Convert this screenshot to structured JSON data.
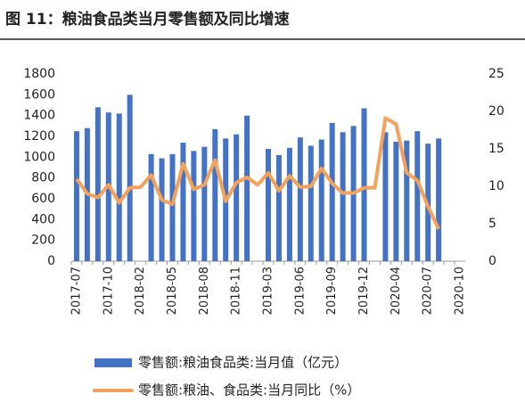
{
  "chart_data": {
    "type": "bar-line",
    "title": "图 11：粮油食品类当月零售额及同比增速",
    "categories": [
      "2017-07",
      null,
      null,
      "2017-10",
      null,
      null,
      "2018-02",
      null,
      null,
      "2018-05",
      null,
      null,
      "2018-08",
      null,
      null,
      "2018-11",
      null,
      null,
      "2019-03",
      null,
      null,
      "2019-06",
      null,
      null,
      "2019-09",
      null,
      null,
      "2019-12",
      null,
      null,
      "2020-04",
      null,
      null,
      "2020-07",
      null,
      null,
      "2020-10"
    ],
    "series": [
      {
        "name": "零售额:粮油食品类:当月值（亿元）",
        "type": "bar",
        "color": "#4472c4",
        "values": [
          1250,
          1280,
          1480,
          1430,
          1420,
          1600,
          null,
          1030,
          990,
          1030,
          1140,
          1060,
          1100,
          1270,
          1180,
          1220,
          1400,
          null,
          1080,
          1020,
          1090,
          1190,
          1110,
          1170,
          1330,
          1240,
          1300,
          1470,
          null,
          1240,
          1150,
          1160,
          1250,
          1130,
          1180,
          null,
          null
        ]
      },
      {
        "name": "零售额:粮油、食品类:当月同比（%）",
        "type": "line",
        "axis": "y2",
        "color": "#f4a25b",
        "values": [
          11,
          9,
          8.5,
          10.2,
          7.8,
          9.8,
          9.9,
          11.5,
          8.2,
          7.6,
          13,
          9.6,
          10.2,
          13.5,
          8,
          10.5,
          11.2,
          10.2,
          11.8,
          9.4,
          11.4,
          9.9,
          10,
          12.4,
          10.4,
          9.1,
          9.1,
          9.8,
          9.8,
          19.1,
          18.3,
          11.8,
          10.8,
          7.3,
          4.3,
          null,
          null
        ]
      }
    ],
    "ylim": [
      0,
      1800
    ],
    "yticks": [
      0,
      200,
      400,
      600,
      800,
      1000,
      1200,
      1400,
      1600,
      1800
    ],
    "y2lim": [
      0,
      25
    ],
    "y2ticks": [
      0,
      5,
      10,
      15,
      20,
      25
    ],
    "legend": "bottom"
  }
}
